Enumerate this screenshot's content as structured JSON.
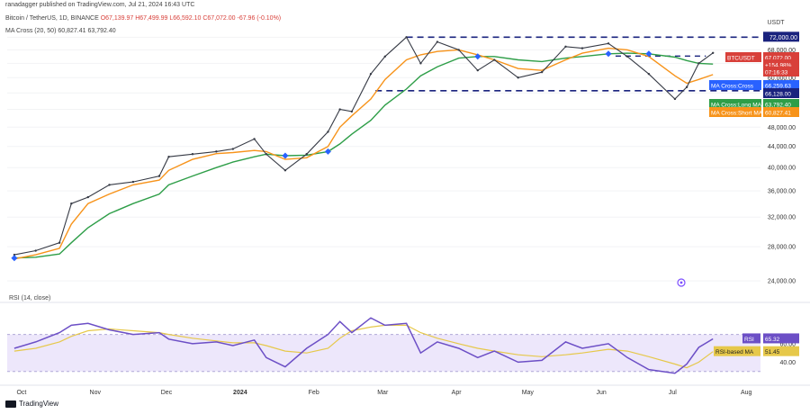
{
  "header": {
    "published": "ranadagger published on TradingView.com, Jul 21, 2024 16:43 UTC",
    "symbol": "Bitcoin / TetherUS, 1D, BINANCE",
    "ohlc": "O67,139.97 H67,499.99 L66,592.10 C67,072.00 -67.96 (-0.10%)",
    "ma_indicator": "MA Cross (20, 50)",
    "ma_values": "60,827.41  63,792.40",
    "rsi_indicator": "RSI (14, close)"
  },
  "footer": {
    "brand": "TradingView"
  },
  "colors": {
    "candle": "#363a45",
    "ma_short": "#f7931a",
    "ma_long": "#2e9e48",
    "rsi": "#6c4fc6",
    "rsi_ma": "#e6c84a",
    "band": "#ede7fb",
    "level_line": "#1a237e",
    "marker": "#2962ff"
  },
  "chart_data": [
    {
      "type": "line",
      "title": "Bitcoin / TetherUS, 1D, BINANCE",
      "unit": "USDT",
      "x_labels": [
        "Oct",
        "Nov",
        "Dec",
        "2024",
        "Feb",
        "Mar",
        "Apr",
        "May",
        "Jun",
        "Jul",
        "Aug"
      ],
      "y_ticks": [
        24000,
        28000,
        32000,
        36000,
        40000,
        44000,
        48000,
        52000,
        56000,
        60000,
        64000,
        68000,
        72000
      ],
      "y_tick_labels": [
        "24,000.00",
        "28,000.00",
        "32,000.00",
        "36,000.00",
        "40,000.00",
        "44,000.00",
        "48,000.00",
        "52,000.00",
        "56,000.00",
        "60,000.00",
        "64,000.00",
        "68,000.00",
        "72,000.00"
      ],
      "scale": "log",
      "ylim": [
        22500,
        76000
      ],
      "dates": [
        "2023-10-01",
        "2023-10-10",
        "2023-10-20",
        "2023-10-25",
        "2023-11-01",
        "2023-11-10",
        "2023-11-20",
        "2023-12-01",
        "2023-12-05",
        "2023-12-15",
        "2023-12-25",
        "2024-01-01",
        "2024-01-10",
        "2024-01-15",
        "2024-01-23",
        "2024-02-01",
        "2024-02-10",
        "2024-02-15",
        "2024-02-20",
        "2024-02-28",
        "2024-03-05",
        "2024-03-14",
        "2024-03-20",
        "2024-03-27",
        "2024-04-05",
        "2024-04-13",
        "2024-04-20",
        "2024-04-30",
        "2024-05-10",
        "2024-05-20",
        "2024-05-27",
        "2024-06-07",
        "2024-06-15",
        "2024-06-24",
        "2024-07-05",
        "2024-07-10",
        "2024-07-15",
        "2024-07-21"
      ],
      "price": [
        27000,
        27500,
        28500,
        34000,
        35000,
        37000,
        37500,
        38500,
        42000,
        42500,
        43000,
        43500,
        45500,
        42500,
        39500,
        42500,
        47000,
        52000,
        51500,
        61000,
        66000,
        72000,
        64000,
        70500,
        68000,
        62000,
        65000,
        60000,
        61500,
        69000,
        68500,
        70000,
        66000,
        61000,
        54500,
        57500,
        64000,
        67072
      ],
      "series": [
        {
          "name": "MA Cross:Short MA",
          "legend_value": "60,827.41",
          "values": [
            26500,
            27000,
            27800,
            31000,
            34000,
            35500,
            37000,
            37800,
            39500,
            41500,
            42600,
            42800,
            43200,
            43000,
            41500,
            41800,
            44000,
            48000,
            50500,
            54500,
            59500,
            65000,
            66500,
            67500,
            68000,
            66500,
            65000,
            62500,
            62000,
            65000,
            67000,
            68500,
            68000,
            66000,
            60500,
            58500,
            59500,
            60827
          ]
        },
        {
          "name": "MA Cross:Long MA",
          "legend_value": "63,792.40",
          "values": [
            26600,
            26700,
            27100,
            28500,
            30500,
            32500,
            34000,
            35500,
            37000,
            38500,
            40000,
            41000,
            42000,
            42500,
            42200,
            42300,
            43000,
            44500,
            46500,
            49500,
            53000,
            57000,
            60500,
            63000,
            65500,
            66000,
            66000,
            65000,
            64500,
            65500,
            66000,
            66800,
            67000,
            66800,
            65800,
            64800,
            64000,
            63792
          ]
        }
      ],
      "levels": [
        {
          "label": "72,000.00",
          "value": 72000
        },
        {
          "label": "56,552.00",
          "value": 56552
        }
      ],
      "price_tags": [
        {
          "label": "BTCUSDT",
          "value": 67072
        },
        {
          "label": "67,072.00",
          "value": 67072
        },
        {
          "label": "+154.98%",
          "value": 67072
        },
        {
          "label": "07:16:33",
          "value": 67072
        },
        {
          "label": "66,259.63",
          "value": 66259.63
        },
        {
          "label": "MA Cross:Cross",
          "value": 66259.63
        },
        {
          "label": "66,128.00",
          "value": 66128
        },
        {
          "label": "MA Cross:Long MA",
          "value": 63792.4
        },
        {
          "label": "63,792.40",
          "value": 63792.4
        },
        {
          "label": "MA Cross:Short MA",
          "value": 60827.41
        },
        {
          "label": "60,827.41",
          "value": 60827.41
        }
      ],
      "cross_markers": [
        "2023-10-01",
        "2024-01-23",
        "2024-02-10",
        "2024-04-13",
        "2024-06-07",
        "2024-06-24"
      ]
    },
    {
      "type": "line",
      "title": "RSI (14, close)",
      "y_ticks": [
        40,
        60
      ],
      "y_tick_labels": [
        "40.00",
        "60.00"
      ],
      "ylim": [
        18,
        95
      ],
      "band": [
        30,
        70
      ],
      "series": [
        {
          "name": "RSI",
          "legend_value": "65.32",
          "values": [
            55,
            62,
            72,
            80,
            82,
            75,
            70,
            72,
            65,
            60,
            62,
            58,
            64,
            45,
            35,
            55,
            70,
            84,
            72,
            88,
            80,
            82,
            50,
            62,
            55,
            45,
            52,
            40,
            42,
            62,
            55,
            60,
            45,
            32,
            28,
            38,
            56,
            65.32
          ]
        },
        {
          "name": "RSI-based MA",
          "legend_value": "51.45",
          "values": [
            52,
            55,
            62,
            68,
            74,
            76,
            74,
            72,
            70,
            66,
            63,
            61,
            61,
            58,
            52,
            50,
            55,
            66,
            74,
            78,
            80,
            80,
            72,
            66,
            60,
            55,
            52,
            48,
            46,
            48,
            50,
            54,
            52,
            46,
            38,
            34,
            40,
            51.45
          ]
        }
      ]
    }
  ]
}
